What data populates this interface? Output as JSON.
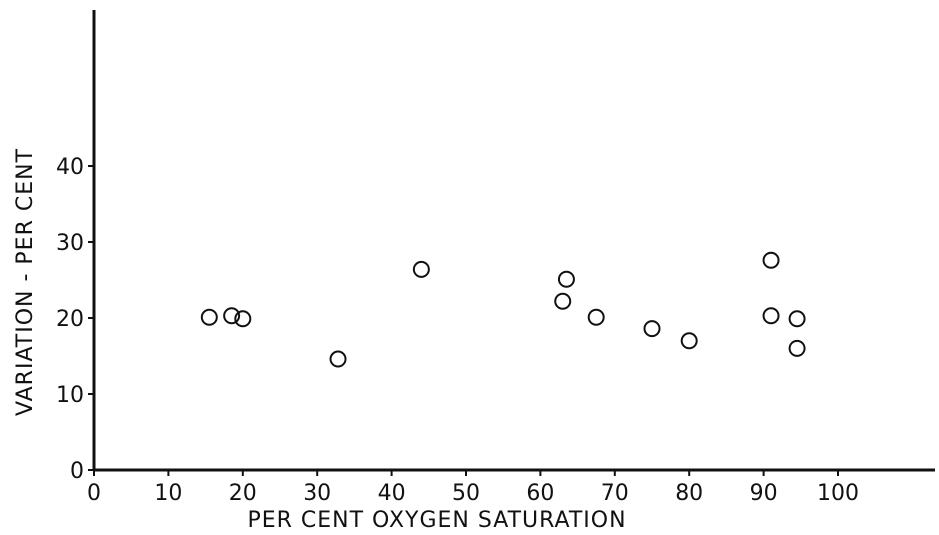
{
  "chart_data": {
    "type": "scatter",
    "title": "",
    "xlabel": "PER CENT OXYGEN SATURATION",
    "ylabel": "VARIATION - PER CENT",
    "xlim": [
      0,
      120
    ],
    "ylim": [
      0,
      60
    ],
    "x_ticks": [
      0,
      10,
      20,
      30,
      40,
      50,
      60,
      70,
      80,
      90,
      100
    ],
    "y_ticks": [
      0,
      10,
      20,
      30,
      40
    ],
    "grid": false,
    "legend": "none",
    "marker": "open-circle",
    "colors": {
      "ink": "#111111",
      "background": "#ffffff"
    },
    "points": [
      {
        "x": 15.5,
        "y": 20.1
      },
      {
        "x": 18.5,
        "y": 20.3
      },
      {
        "x": 20.0,
        "y": 19.9
      },
      {
        "x": 32.8,
        "y": 14.6
      },
      {
        "x": 44.0,
        "y": 26.4
      },
      {
        "x": 63.0,
        "y": 22.2
      },
      {
        "x": 63.5,
        "y": 25.1
      },
      {
        "x": 67.5,
        "y": 20.1
      },
      {
        "x": 75.0,
        "y": 18.6
      },
      {
        "x": 80.0,
        "y": 17.0
      },
      {
        "x": 91.0,
        "y": 27.6
      },
      {
        "x": 91.0,
        "y": 20.3
      },
      {
        "x": 94.5,
        "y": 19.9
      },
      {
        "x": 94.5,
        "y": 16.0
      }
    ]
  }
}
